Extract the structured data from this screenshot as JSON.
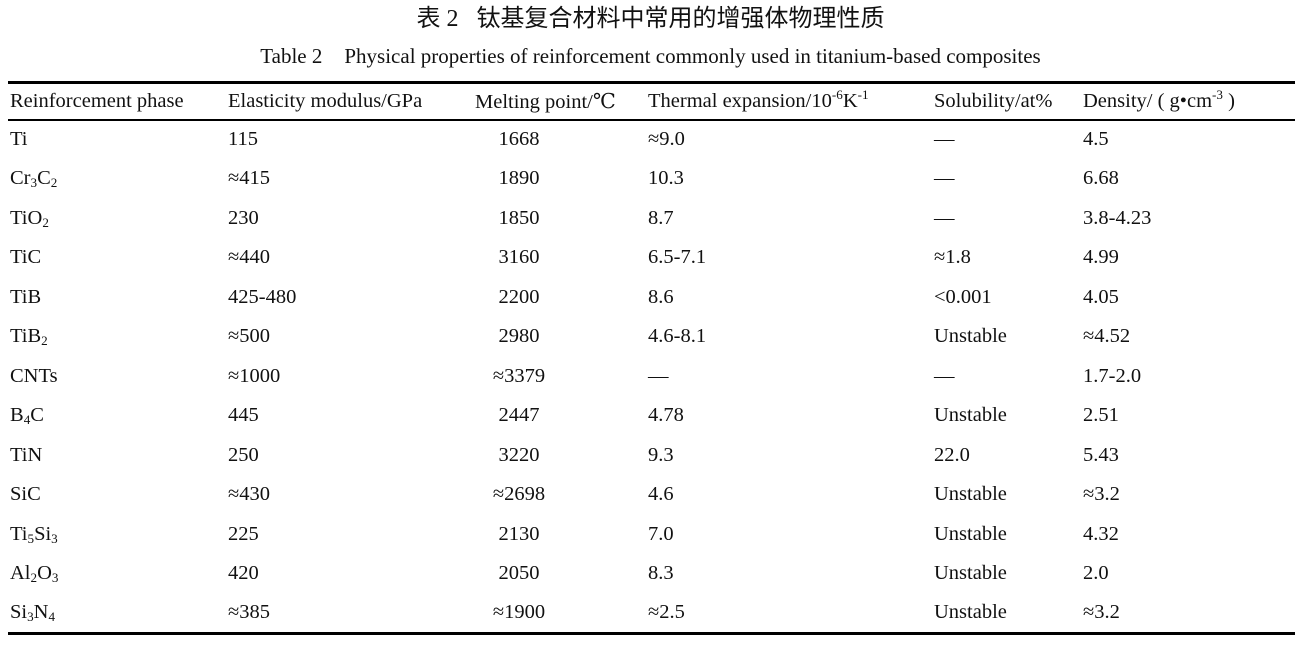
{
  "page": {
    "background_color": "#ffffff",
    "text_color": "#111111",
    "rule_color": "#000000"
  },
  "caption": {
    "zh": {
      "label": "表 2",
      "text": "钛基复合材料中常用的增强体物理性质"
    },
    "en": {
      "label": "Table 2",
      "text": "Physical properties of reinforcement commonly used in titanium-based composites"
    }
  },
  "table": {
    "columns": [
      {
        "key": "phase",
        "label": "Reinforcement phase"
      },
      {
        "key": "modulus",
        "label": "Elasticity modulus/GPa"
      },
      {
        "key": "melting",
        "label": "Melting point/℃"
      },
      {
        "key": "expansion",
        "label": "Thermal expansion/10^{-6}K^{-1}"
      },
      {
        "key": "solubility",
        "label": "Solubility/at%"
      },
      {
        "key": "density",
        "label": "Density/ ( g•cm^{-3} )"
      }
    ],
    "rows": [
      {
        "phase": "Ti",
        "modulus": "115",
        "melting": "1668",
        "expansion": "≈9.0",
        "solubility": "—",
        "density": "4.5"
      },
      {
        "phase": "Cr_{3}C_{2}",
        "modulus": "≈415",
        "melting": "1890",
        "expansion": "10.3",
        "solubility": "—",
        "density": "6.68"
      },
      {
        "phase": "TiO_{2}",
        "modulus": "230",
        "melting": "1850",
        "expansion": "8.7",
        "solubility": "—",
        "density": "3.8-4.23"
      },
      {
        "phase": "TiC",
        "modulus": "≈440",
        "melting": "3160",
        "expansion": "6.5-7.1",
        "solubility": "≈1.8",
        "density": "4.99"
      },
      {
        "phase": "TiB",
        "modulus": "425-480",
        "melting": "2200",
        "expansion": "8.6",
        "solubility": "<0.001",
        "density": "4.05"
      },
      {
        "phase": "TiB_{2}",
        "modulus": "≈500",
        "melting": "2980",
        "expansion": "4.6-8.1",
        "solubility": "Unstable",
        "density": "≈4.52"
      },
      {
        "phase": "CNTs",
        "modulus": "≈1000",
        "melting": "≈3379",
        "expansion": "—",
        "solubility": "—",
        "density": "1.7-2.0"
      },
      {
        "phase": "B_{4}C",
        "modulus": "445",
        "melting": "2447",
        "expansion": "4.78",
        "solubility": "Unstable",
        "density": "2.51"
      },
      {
        "phase": "TiN",
        "modulus": "250",
        "melting": "3220",
        "expansion": "9.3",
        "solubility": "22.0",
        "density": "5.43"
      },
      {
        "phase": "SiC",
        "modulus": "≈430",
        "melting": "≈2698",
        "expansion": "4.6",
        "solubility": "Unstable",
        "density": "≈3.2"
      },
      {
        "phase": "Ti_{5}Si_{3}",
        "modulus": "225",
        "melting": "2130",
        "expansion": "7.0",
        "solubility": "Unstable",
        "density": "4.32"
      },
      {
        "phase": "Al_{2}O_{3}",
        "modulus": "420",
        "melting": "2050",
        "expansion": "8.3",
        "solubility": "Unstable",
        "density": "2.0"
      },
      {
        "phase": "Si_{3}N_{4}",
        "modulus": "≈385",
        "melting": "≈1900",
        "expansion": "≈2.5",
        "solubility": "Unstable",
        "density": "≈3.2"
      }
    ]
  }
}
